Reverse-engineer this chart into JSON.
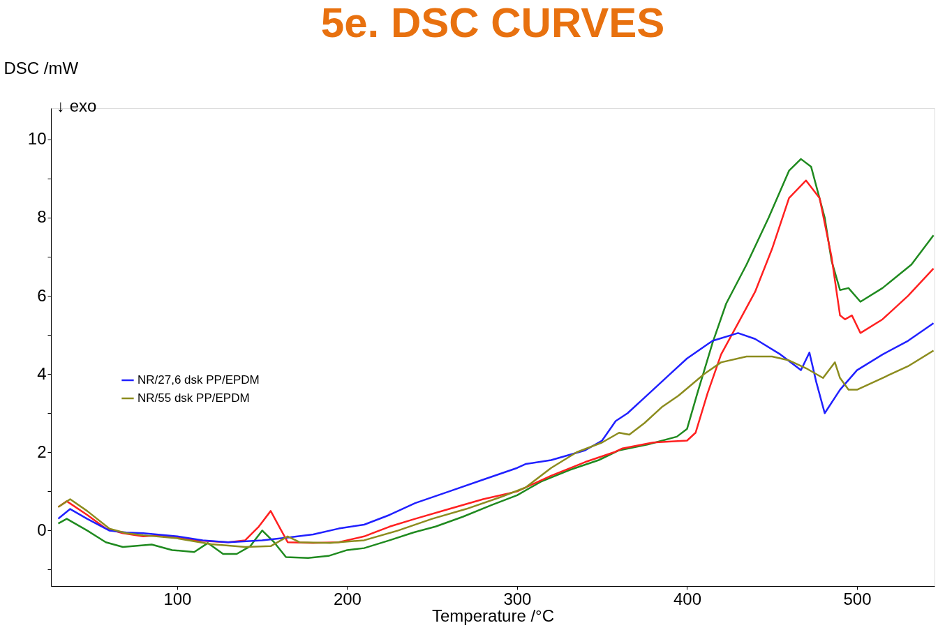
{
  "chart_data": {
    "type": "line",
    "title": "5e. DSC CURVES",
    "xlabel": "Temperature /°C",
    "ylabel": "DSC /mW",
    "annotations": [
      "↓ exo"
    ],
    "xlim": [
      25.7,
      545.6
    ],
    "ylim": [
      -1.42,
      10.8
    ],
    "xticks": [
      100,
      200,
      300,
      400,
      500
    ],
    "yticks": [
      {
        "value": -1,
        "label": null
      },
      0,
      {
        "value": 1,
        "label": null
      },
      2,
      {
        "value": 3,
        "label": null
      },
      4,
      {
        "value": 5,
        "label": null
      },
      6,
      {
        "value": 7,
        "label": null
      },
      8,
      {
        "value": 9,
        "label": null
      },
      10
    ],
    "grid": false,
    "legend": "left",
    "marker": "none",
    "line_style": "solid",
    "series": [
      {
        "color": "#1f8a1f",
        "x": [
          30,
          35,
          47,
          58,
          68,
          85,
          97,
          110,
          118,
          127,
          135,
          143,
          150,
          157,
          164,
          177,
          189,
          200,
          210,
          225,
          239,
          252,
          268,
          285,
          300,
          314,
          331,
          348,
          360,
          377,
          394,
          400,
          406,
          415,
          423,
          435,
          448,
          460,
          467,
          473,
          481,
          485,
          490,
          495,
          502,
          515,
          532,
          545
        ],
        "values": [
          0.18,
          0.3,
          0.0,
          -0.3,
          -0.42,
          -0.36,
          -0.5,
          -0.55,
          -0.32,
          -0.6,
          -0.6,
          -0.4,
          0.0,
          -0.3,
          -0.68,
          -0.7,
          -0.65,
          -0.5,
          -0.45,
          -0.25,
          -0.05,
          0.1,
          0.35,
          0.65,
          0.9,
          1.25,
          1.55,
          1.8,
          2.05,
          2.2,
          2.4,
          2.6,
          3.5,
          4.8,
          5.8,
          6.8,
          8.0,
          9.2,
          9.5,
          9.3,
          8.0,
          6.9,
          6.15,
          6.2,
          5.85,
          6.2,
          6.8,
          7.55
        ]
      },
      {
        "color": "#ff2020",
        "x": [
          30,
          35,
          47,
          58,
          68,
          80,
          90,
          110,
          130,
          140,
          148,
          155,
          160,
          165,
          180,
          195,
          210,
          225,
          240,
          260,
          280,
          300,
          320,
          340,
          357,
          362,
          380,
          400,
          405,
          412,
          420,
          430,
          440,
          450,
          460,
          470,
          478,
          485,
          490,
          493,
          497,
          502,
          515,
          530,
          545
        ],
        "values": [
          0.6,
          0.75,
          0.4,
          0.05,
          -0.07,
          -0.15,
          -0.12,
          -0.25,
          -0.3,
          -0.25,
          0.1,
          0.5,
          0.1,
          -0.3,
          -0.32,
          -0.3,
          -0.15,
          0.1,
          0.3,
          0.55,
          0.8,
          1.0,
          1.4,
          1.75,
          2.0,
          2.1,
          2.25,
          2.3,
          2.5,
          3.5,
          4.5,
          5.3,
          6.1,
          7.2,
          8.5,
          8.95,
          8.5,
          7.0,
          5.5,
          5.4,
          5.5,
          5.05,
          5.4,
          6.0,
          6.7
        ]
      },
      {
        "name": "NR/27,6 dsk PP/EPDM",
        "color": "#2020ff",
        "x": [
          30,
          37,
          47,
          60,
          70,
          80,
          100,
          115,
          130,
          150,
          165,
          180,
          195,
          210,
          225,
          240,
          260,
          280,
          300,
          305,
          320,
          340,
          350,
          358,
          365,
          375,
          390,
          400,
          415,
          430,
          440,
          455,
          467,
          472,
          476,
          481,
          490,
          500,
          515,
          530,
          545
        ],
        "values": [
          0.3,
          0.55,
          0.3,
          0.0,
          -0.05,
          -0.07,
          -0.15,
          -0.25,
          -0.3,
          -0.25,
          -0.18,
          -0.1,
          0.05,
          0.15,
          0.4,
          0.7,
          1.0,
          1.3,
          1.6,
          1.7,
          1.8,
          2.05,
          2.3,
          2.8,
          3.0,
          3.4,
          4.0,
          4.4,
          4.85,
          5.05,
          4.9,
          4.5,
          4.1,
          4.55,
          3.8,
          3.0,
          3.6,
          4.1,
          4.5,
          4.85,
          5.3
        ]
      },
      {
        "name": "NR/55 dsk PP/EPDM",
        "color": "#8c8c1e",
        "x": [
          30,
          37,
          47,
          60,
          70,
          80,
          100,
          120,
          140,
          155,
          165,
          172,
          190,
          210,
          230,
          250,
          270,
          290,
          305,
          320,
          335,
          350,
          360,
          366,
          375,
          385,
          395,
          410,
          420,
          435,
          450,
          460,
          470,
          480,
          487,
          490,
          495,
          500,
          515,
          530,
          545
        ],
        "values": [
          0.6,
          0.8,
          0.5,
          0.05,
          -0.07,
          -0.12,
          -0.2,
          -0.35,
          -0.42,
          -0.4,
          -0.15,
          -0.3,
          -0.32,
          -0.25,
          0.0,
          0.3,
          0.55,
          0.85,
          1.1,
          1.6,
          2.0,
          2.25,
          2.5,
          2.45,
          2.75,
          3.15,
          3.45,
          4.0,
          4.3,
          4.45,
          4.45,
          4.35,
          4.15,
          3.9,
          4.3,
          3.9,
          3.6,
          3.6,
          3.9,
          4.2,
          4.6
        ]
      }
    ]
  }
}
